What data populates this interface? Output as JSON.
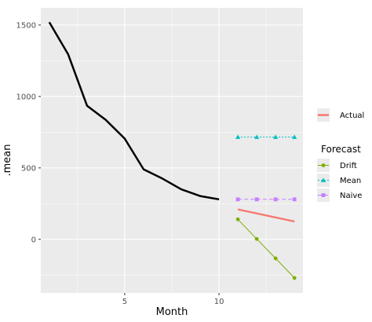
{
  "chart_data": {
    "type": "line",
    "xlabel": "Month",
    "ylabel": ".mean",
    "xlim": [
      0.55,
      14.45
    ],
    "ylim": [
      -375,
      1620
    ],
    "x_ticks": [
      5,
      10
    ],
    "y_ticks": [
      0,
      500,
      1000,
      1500
    ],
    "grid": true,
    "legend_position": "right",
    "actual_legend": {
      "label": "Actual",
      "color": "#F8766D"
    },
    "forecast_legend": {
      "title": "Forecast",
      "items": [
        {
          "label": "Drift",
          "color": "#7CAE00",
          "marker": "circle",
          "dash": "solid"
        },
        {
          "label": "Mean",
          "color": "#00BFC4",
          "marker": "triangle",
          "dash": "dotted"
        },
        {
          "label": "Naive",
          "color": "#C77CFF",
          "marker": "square",
          "dash": "dashed"
        }
      ]
    },
    "history": {
      "color": "#000000",
      "x": [
        1,
        2,
        3,
        4,
        5,
        6,
        7,
        8,
        9,
        10
      ],
      "y": [
        1520,
        1295,
        935,
        835,
        705,
        490,
        425,
        350,
        303,
        280
      ]
    },
    "actual": {
      "color": "#F8766D",
      "x": [
        11,
        14
      ],
      "y": [
        210,
        125
      ]
    },
    "forecasts": [
      {
        "name": "Drift",
        "color": "#7CAE00",
        "marker": "circle",
        "dash": "solid",
        "x": [
          11,
          12,
          13,
          14
        ],
        "y": [
          140,
          3,
          -133,
          -270
        ]
      },
      {
        "name": "Mean",
        "color": "#00BFC4",
        "marker": "triangle",
        "dash": "dotted",
        "x": [
          11,
          12,
          13,
          14
        ],
        "y": [
          716,
          716,
          716,
          716
        ]
      },
      {
        "name": "Naive",
        "color": "#C77CFF",
        "marker": "square",
        "dash": "dashed",
        "x": [
          11,
          12,
          13,
          14
        ],
        "y": [
          280,
          280,
          280,
          280
        ]
      }
    ]
  }
}
